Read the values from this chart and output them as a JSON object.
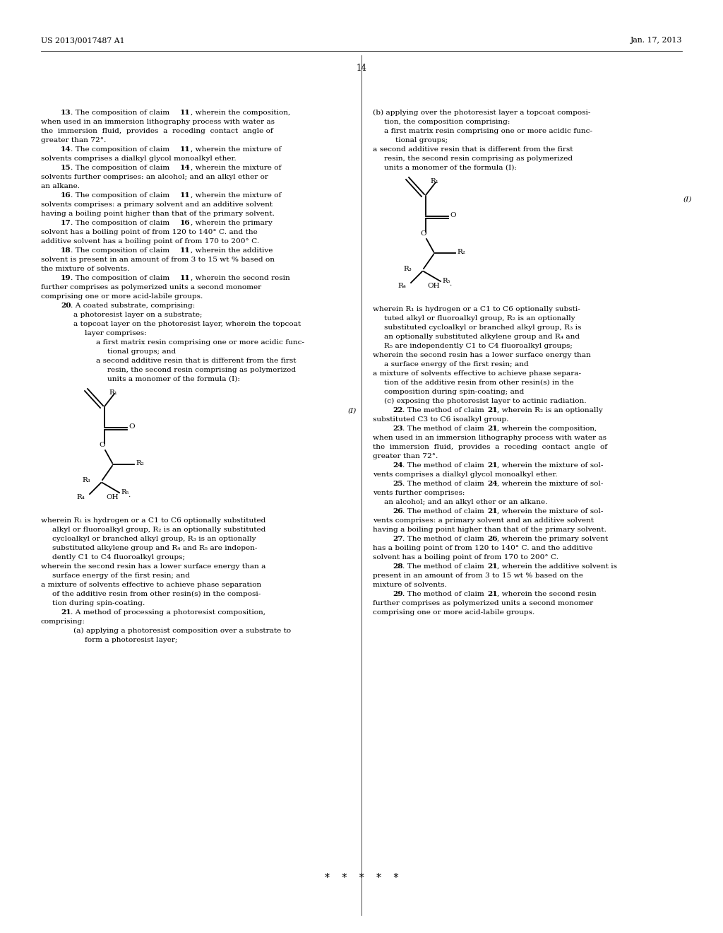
{
  "background_color": "#ffffff",
  "header_left": "US 2013/0017487 A1",
  "header_right": "Jan. 17, 2013",
  "page_number": "14"
}
